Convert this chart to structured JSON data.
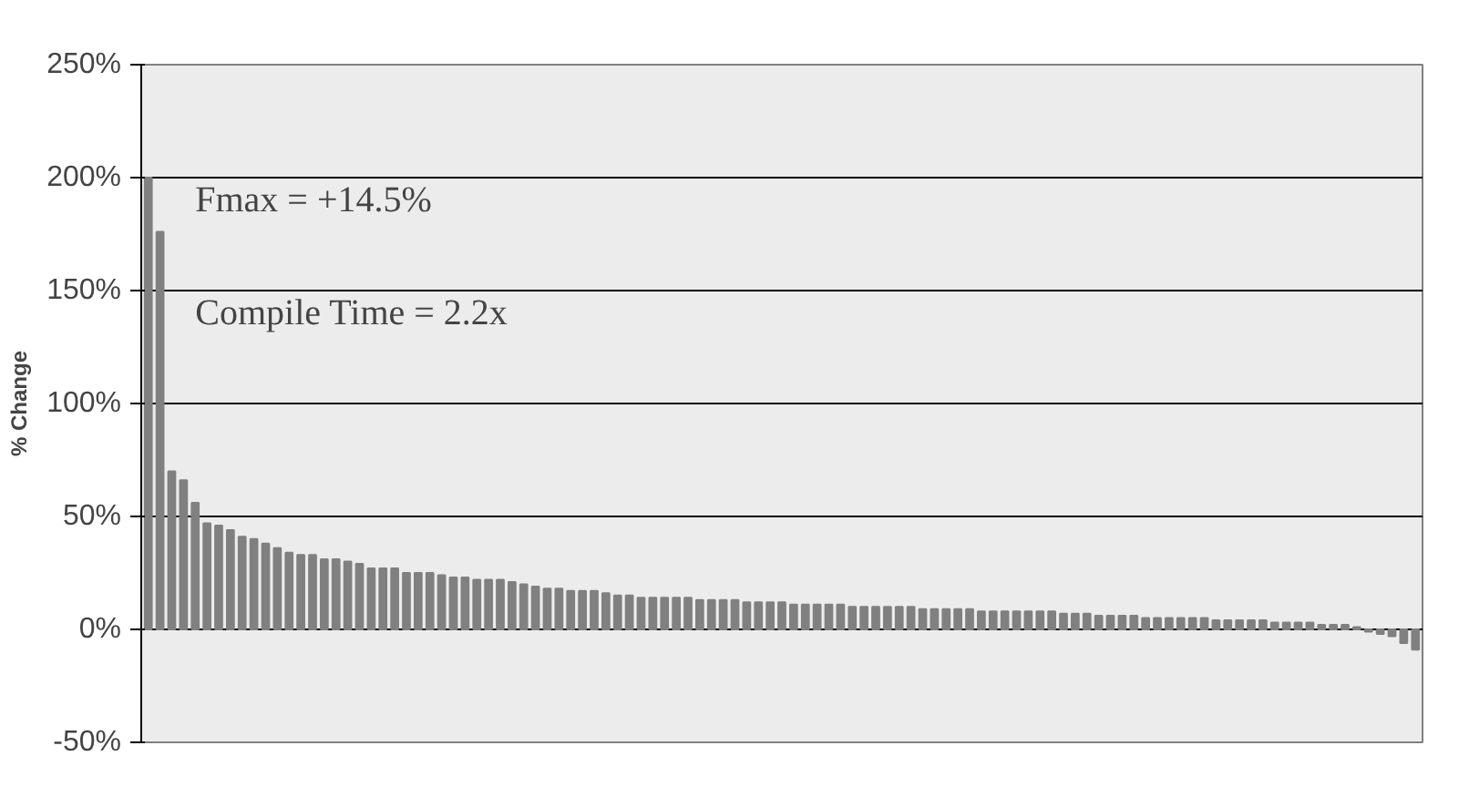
{
  "chart_data": {
    "type": "bar",
    "ylabel": "% Change",
    "categories": [
      null,
      null,
      null,
      null,
      null,
      null,
      null,
      null,
      null,
      null,
      null,
      null,
      null,
      null,
      null,
      null,
      null,
      null,
      null,
      null,
      null,
      null,
      null,
      null,
      null,
      null,
      null,
      null,
      null,
      null,
      null,
      null,
      null,
      null,
      null,
      null,
      null,
      null,
      null,
      null,
      null,
      null,
      null,
      null,
      null,
      null,
      null,
      null,
      null,
      null,
      null,
      null,
      null,
      null,
      null,
      null,
      null,
      null,
      null,
      null,
      null,
      null,
      null,
      null,
      null,
      null,
      null,
      null,
      null,
      null,
      null,
      null,
      null,
      null,
      null,
      null,
      null,
      null,
      null,
      null,
      null,
      null,
      null,
      null,
      null,
      null,
      null,
      null,
      null,
      null,
      null,
      null,
      null,
      null,
      null,
      null,
      null,
      null,
      null,
      null,
      null,
      null,
      null,
      null,
      null,
      null,
      null,
      null,
      null
    ],
    "values": [
      200,
      176,
      70,
      66,
      56,
      47,
      46,
      44,
      41,
      40,
      38,
      36,
      34,
      33,
      33,
      31,
      31,
      30,
      29,
      27,
      27,
      27,
      25,
      25,
      25,
      24,
      23,
      23,
      22,
      22,
      22,
      21,
      20,
      19,
      18,
      18,
      17,
      17,
      17,
      16,
      15,
      15,
      14,
      14,
      14,
      14,
      14,
      13,
      13,
      13,
      13,
      12,
      12,
      12,
      12,
      11,
      11,
      11,
      11,
      11,
      10,
      10,
      10,
      10,
      10,
      10,
      9,
      9,
      9,
      9,
      9,
      8,
      8,
      8,
      8,
      8,
      8,
      8,
      7,
      7,
      7,
      6,
      6,
      6,
      6,
      5,
      5,
      5,
      5,
      5,
      5,
      4,
      4,
      4,
      4,
      4,
      3,
      3,
      3,
      3,
      2,
      2,
      2,
      1,
      -1,
      -2,
      -3,
      -6,
      -9
    ],
    "color": "#808080",
    "ylim": [
      -50,
      250
    ],
    "yticks": [
      {
        "value": -50,
        "label": "-50%"
      },
      {
        "value": 0,
        "label": "0%"
      },
      {
        "value": 50,
        "label": "50%"
      },
      {
        "value": 100,
        "label": "100%"
      },
      {
        "value": 150,
        "label": "150%"
      },
      {
        "value": 200,
        "label": "200%"
      },
      {
        "value": 250,
        "label": "250%"
      }
    ],
    "grid": "y",
    "tick_labels": "y",
    "annotations": [
      "Fmax = +14.5%",
      "Compile Time = 2.2x"
    ]
  }
}
